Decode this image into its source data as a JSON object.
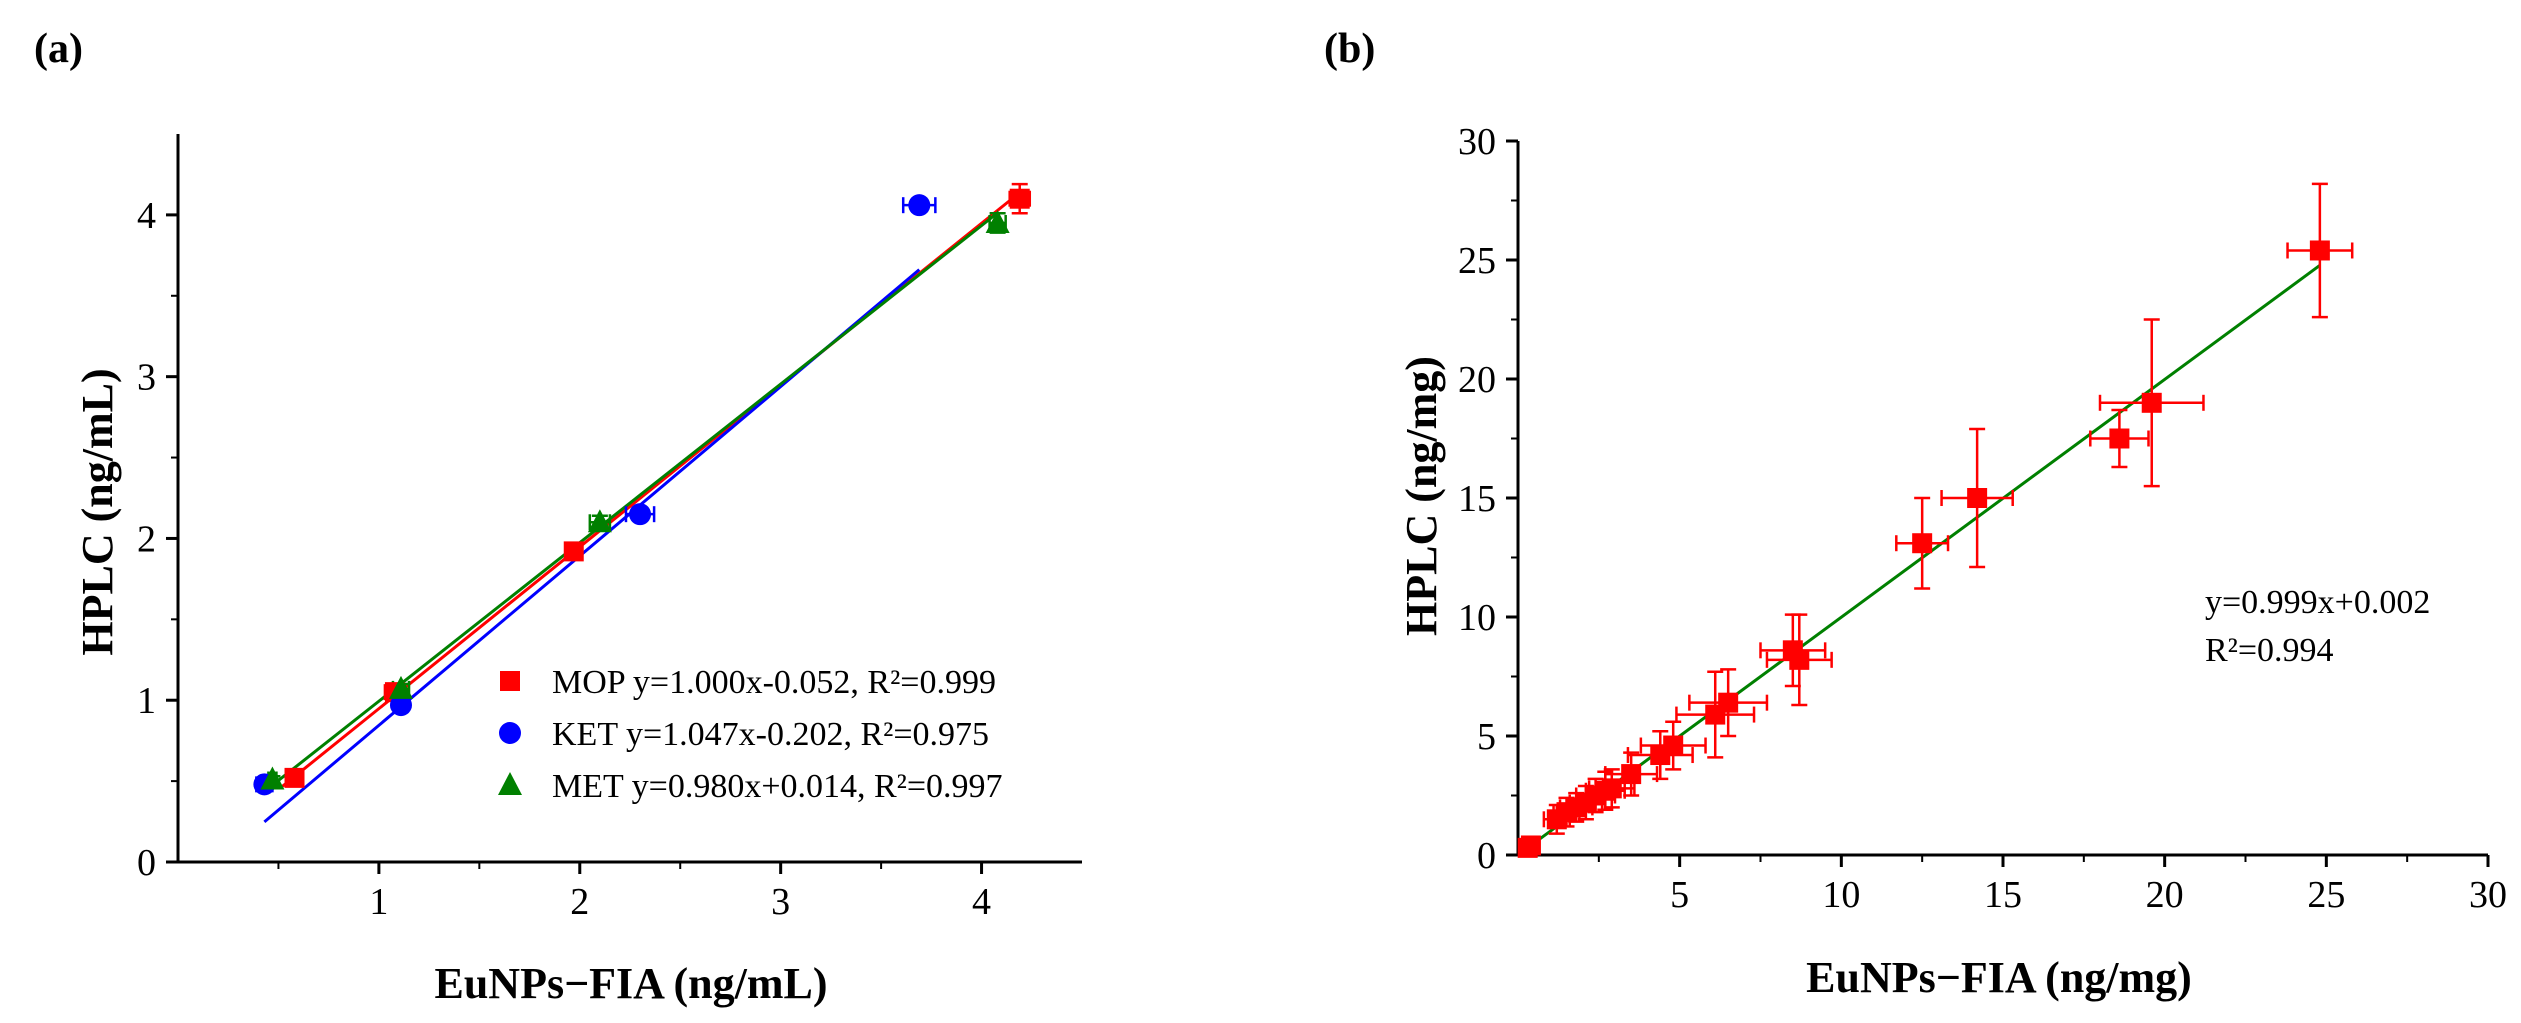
{
  "chart_data": [
    {
      "type": "scatter",
      "panel_label": "(a)",
      "xlabel": "EuNPs−FIA (ng/mL)",
      "ylabel": "HPLC (ng/mL)",
      "xlim": [
        0,
        4.5
      ],
      "ylim": [
        0,
        4.5
      ],
      "xticks": [
        1,
        2,
        3,
        4
      ],
      "yticks": [
        0,
        1,
        2,
        3,
        4
      ],
      "legend_position": "bottom-right",
      "series": [
        {
          "name": "MOP",
          "equation": "y=1.000x-0.052, R²=0.999",
          "marker": "square",
          "color": "#ff0000",
          "x": [
            0.58,
            1.08,
            1.97,
            4.19
          ],
          "y": [
            0.52,
            1.05,
            1.92,
            4.1
          ],
          "xerr": [
            0.03,
            0.05,
            0.04,
            0.05
          ],
          "yerr": [
            0.02,
            0.03,
            0.03,
            0.09
          ],
          "fit": {
            "slope": 1.0,
            "intercept": -0.052,
            "x": [
              0.52,
              4.19
            ]
          }
        },
        {
          "name": "KET",
          "equation": "y=1.047x-0.202, R²=0.975",
          "marker": "circle",
          "color": "#0000ff",
          "x": [
            0.43,
            1.11,
            2.3,
            3.69
          ],
          "y": [
            0.48,
            0.97,
            2.15,
            4.06
          ],
          "xerr": [
            0.04,
            0.03,
            0.07,
            0.08
          ],
          "yerr": [
            0.02,
            0.02,
            0.03,
            0.04
          ],
          "fit": {
            "slope": 1.047,
            "intercept": -0.202,
            "x": [
              0.43,
              3.69
            ]
          }
        },
        {
          "name": "MET",
          "equation": "y=0.980x+0.014, R²=0.997",
          "marker": "triangle",
          "color": "#008000",
          "x": [
            0.47,
            1.11,
            2.1,
            4.08
          ],
          "y": [
            0.51,
            1.07,
            2.1,
            3.95
          ],
          "xerr": [
            0.02,
            0.04,
            0.05,
            0.04
          ],
          "yerr": [
            0.02,
            0.03,
            0.04,
            0.06
          ],
          "fit": {
            "slope": 0.98,
            "intercept": 0.014,
            "x": [
              0.47,
              4.08
            ]
          }
        }
      ]
    },
    {
      "type": "scatter",
      "panel_label": "(b)",
      "xlabel": "EuNPs−FIA (ng/mg)",
      "ylabel": "HPLC (ng/mg)",
      "xlim": [
        0,
        30
      ],
      "ylim": [
        0,
        30
      ],
      "xticks": [
        5,
        10,
        15,
        20,
        25,
        30
      ],
      "yticks": [
        0,
        5,
        10,
        15,
        20,
        25,
        30
      ],
      "annotation": [
        "y=0.999x+0.002",
        "R²=0.994"
      ],
      "series": [
        {
          "name": "",
          "marker": "square",
          "color": "#ff0000",
          "line_color": "#008000",
          "x": [
            0.3,
            0.4,
            1.2,
            1.5,
            1.8,
            2.1,
            2.4,
            2.7,
            2.9,
            3.5,
            4.4,
            4.8,
            6.1,
            6.5,
            8.5,
            8.7,
            12.5,
            14.2,
            18.6,
            19.6,
            24.8
          ],
          "y": [
            0.3,
            0.4,
            1.5,
            1.8,
            2.0,
            2.2,
            2.5,
            2.7,
            2.8,
            3.4,
            4.2,
            4.6,
            5.9,
            6.4,
            8.6,
            8.2,
            13.1,
            15.0,
            17.5,
            19.0,
            25.4
          ],
          "xerr": [
            0.1,
            0.1,
            0.4,
            0.4,
            0.5,
            0.5,
            0.6,
            0.6,
            0.7,
            0.8,
            1.0,
            1.0,
            1.2,
            1.2,
            1.0,
            1.0,
            0.8,
            1.1,
            0.9,
            1.6,
            1.0
          ],
          "yerr": [
            0.1,
            0.1,
            0.6,
            0.6,
            0.6,
            0.7,
            0.7,
            0.8,
            0.8,
            0.9,
            1.0,
            1.0,
            1.8,
            1.4,
            1.5,
            1.9,
            1.9,
            2.9,
            1.2,
            3.5,
            2.8
          ],
          "fit": {
            "slope": 0.999,
            "intercept": 0.002,
            "x": [
              0.3,
              24.8
            ]
          }
        }
      ]
    }
  ]
}
